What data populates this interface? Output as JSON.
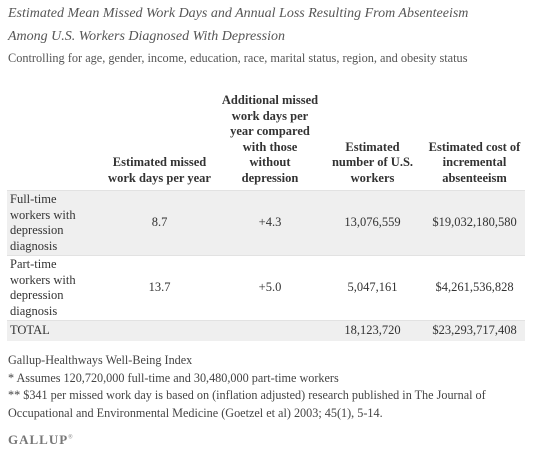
{
  "title_line1": "Estimated Mean Missed Work Days and Annual Loss Resulting From Absenteeism",
  "title_line2": "Among U.S. Workers Diagnosed With Depression",
  "subtitle": "Controlling for age, gender, income, education, race, marital status, region, and obesity status",
  "chart_data": {
    "type": "table",
    "columns": [
      "",
      "Estimated missed work days per year",
      "Additional missed work days per year compared with those without depression",
      "Estimated number of U.S. workers",
      "Estimated cost of incremental absenteeism"
    ],
    "rows": [
      {
        "label": "Full-time workers with depression diagnosis",
        "cells": [
          "8.7",
          "+4.3",
          "13,076,559",
          "$19,032,180,580"
        ]
      },
      {
        "label": "Part-time workers with depression diagnosis",
        "cells": [
          "13.7",
          "+5.0",
          "5,047,161",
          "$4,261,536,828"
        ]
      },
      {
        "label": "TOTAL",
        "cells": [
          "",
          "",
          "18,123,720",
          "$23,293,717,408"
        ]
      }
    ]
  },
  "notes": {
    "source": "Gallup-Healthways Well-Being Index",
    "footnote1": "* Assumes 120,720,000 full-time and 30,480,000 part-time workers",
    "footnote2": "** $341 per missed work day is based on (inflation adjusted) research published in The Journal of Occupational and Environmental Medicine (Goetzel et al) 2003; 45(1), 5-14."
  },
  "logo": {
    "text": "GALLUP",
    "mark": "®"
  },
  "colors": {
    "row_shade": "#efefef",
    "text": "#333333",
    "title": "#555555"
  }
}
